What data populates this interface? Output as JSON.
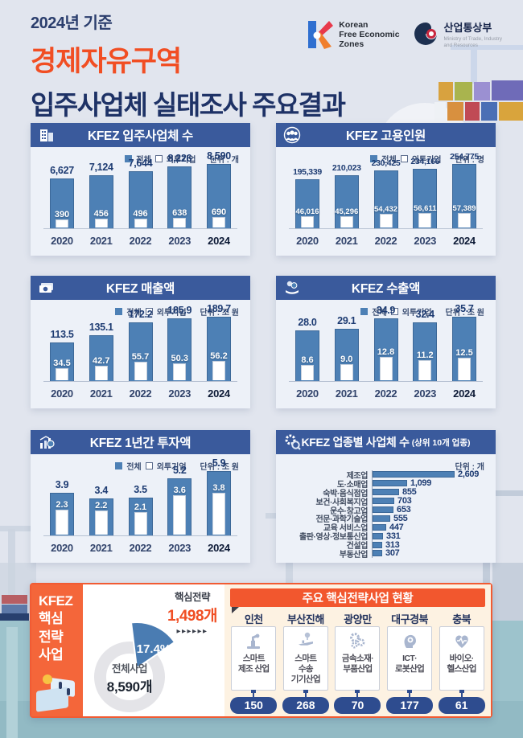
{
  "header": {
    "subtitle": "2024년 기준",
    "title_line1": "경제자유구역",
    "title_line2": "입주사업체 실태조사 주요결과",
    "kfez_logo": {
      "line1": "Korean",
      "line2": "Free Economic",
      "line3": "Zones"
    },
    "motie_logo": {
      "name": "산업통상부",
      "sub1": "Ministry of Trade, Industry",
      "sub2": "and Resources"
    }
  },
  "legend": {
    "total": "전체",
    "foreign": "외투기업"
  },
  "colors": {
    "panel_header": "#3a5a9c",
    "bar_blue": "#4d80b5",
    "value_navy": "#1d3b72",
    "accent_orange": "#f2572e",
    "title_orange": "#f14e23",
    "pill_navy": "#2e4c8f",
    "cream": "#fdf2e2",
    "water": "#9dc3cc"
  },
  "chart_data": [
    {
      "type": "bar",
      "title": "KFEZ 입주사업체 수",
      "unit": "단위 : 개",
      "icon": "building-icon",
      "categories": [
        "2020",
        "2021",
        "2022",
        "2023",
        "2024"
      ],
      "series": [
        {
          "name": "전체",
          "values": [
            6627,
            7124,
            7644,
            8226,
            8590
          ],
          "labels": [
            "6,627",
            "7,124",
            "7,644",
            "8,226",
            "8,590"
          ]
        },
        {
          "name": "외투기업",
          "values": [
            390,
            456,
            496,
            638,
            690
          ],
          "labels": [
            "390",
            "456",
            "496",
            "638",
            "690"
          ]
        }
      ]
    },
    {
      "type": "bar",
      "title": "KFEZ 고용인원",
      "unit": "단위 : 명",
      "icon": "people-icon",
      "categories": [
        "2020",
        "2021",
        "2022",
        "2023",
        "2024"
      ],
      "series": [
        {
          "name": "전체",
          "values": [
            195339,
            210023,
            230425,
            234166,
            254775
          ],
          "labels": [
            "195,339",
            "210,023",
            "230,425",
            "234,166",
            "254,775"
          ]
        },
        {
          "name": "외투기업",
          "values": [
            46016,
            45296,
            54432,
            56611,
            57389
          ],
          "labels": [
            "46,016",
            "45,296",
            "54,432",
            "56,611",
            "57,389"
          ]
        }
      ]
    },
    {
      "type": "bar",
      "title": "KFEZ 매출액",
      "unit": "단위 : 조 원",
      "icon": "money-icon",
      "categories": [
        "2020",
        "2021",
        "2022",
        "2023",
        "2024"
      ],
      "series": [
        {
          "name": "전체",
          "values": [
            113.5,
            135.1,
            172.2,
            185.9,
            189.7
          ],
          "labels": [
            "113.5",
            "135.1",
            "172.2",
            "185.9",
            "189.7"
          ]
        },
        {
          "name": "외투기업",
          "values": [
            34.5,
            42.7,
            55.7,
            50.3,
            56.2
          ],
          "labels": [
            "34.5",
            "42.7",
            "55.7",
            "50.3",
            "56.2"
          ]
        }
      ]
    },
    {
      "type": "bar",
      "title": "KFEZ 수출액",
      "unit": "단위 : 조 원",
      "icon": "export-icon",
      "categories": [
        "2020",
        "2021",
        "2022",
        "2023",
        "2024"
      ],
      "series": [
        {
          "name": "전체",
          "values": [
            28.0,
            29.1,
            34.9,
            32.4,
            35.7
          ],
          "labels": [
            "28.0",
            "29.1",
            "34.9",
            "32.4",
            "35.7"
          ]
        },
        {
          "name": "외투기업",
          "values": [
            8.6,
            9.0,
            12.8,
            11.2,
            12.5
          ],
          "labels": [
            "8.6",
            "9.0",
            "12.8",
            "11.2",
            "12.5"
          ]
        }
      ]
    },
    {
      "type": "bar",
      "title": "KFEZ 1년간 투자액",
      "unit": "단위 : 조 원",
      "icon": "investment-icon",
      "categories": [
        "2020",
        "2021",
        "2022",
        "2023",
        "2024"
      ],
      "series": [
        {
          "name": "전체",
          "values": [
            3.9,
            3.4,
            3.5,
            5.2,
            5.9
          ],
          "labels": [
            "3.9",
            "3.4",
            "3.5",
            "5.2",
            "5.9"
          ]
        },
        {
          "name": "외투기업",
          "values": [
            2.3,
            2.2,
            2.1,
            3.6,
            3.8
          ],
          "labels": [
            "2.3",
            "2.2",
            "2.1",
            "3.6",
            "3.8"
          ]
        }
      ]
    },
    {
      "type": "bar",
      "orientation": "horizontal",
      "title": "KFEZ 업종별 사업체 수",
      "title_suffix": "(상위 10개 업종)",
      "unit": "단위 : 개",
      "icon": "industry-icon",
      "categories": [
        "제조업",
        "도·소매업",
        "숙박·음식점업",
        "보건·사회복지업",
        "운수·창고업",
        "전문·과학기술업",
        "교육 서비스업",
        "출판·영상·정보통신업",
        "건설업",
        "부동산업"
      ],
      "values": [
        2609,
        1099,
        855,
        703,
        653,
        555,
        447,
        331,
        313,
        307
      ],
      "labels": [
        "2,609",
        "1,099",
        "855",
        "703",
        "653",
        "555",
        "447",
        "331",
        "313",
        "307"
      ]
    },
    {
      "type": "pie",
      "title": "KFEZ 핵심 전략 사업",
      "slices": [
        {
          "label": "핵심전략",
          "count_label": "1,498개",
          "pct": 17.4
        },
        {
          "label": "전체사업",
          "count_label": "8,590개",
          "pct": 82.6
        }
      ],
      "pct_label": "17.4%",
      "arrows": "▶▶▶▶▶▶"
    }
  ],
  "bottom": {
    "sidebar_lines": [
      "KFEZ",
      "핵심",
      "전략",
      "사업"
    ],
    "strategy": {
      "header": "주요 핵심전략사업 현황",
      "regions": [
        {
          "name": "인천",
          "icon": "robot-arm-icon",
          "lines": [
            "스마트",
            "제조 산업"
          ],
          "count": "150"
        },
        {
          "name": "부산진해",
          "icon": "transport-icon",
          "lines": [
            "스마트",
            "수송",
            "기기산업"
          ],
          "count": "268"
        },
        {
          "name": "광양만",
          "icon": "gears-icon",
          "lines": [
            "금속소재·",
            "부품산업"
          ],
          "count": "70"
        },
        {
          "name": "대구경북",
          "icon": "ict-robot-icon",
          "lines": [
            "ICT·",
            "로봇산업"
          ],
          "count": "177"
        },
        {
          "name": "충북",
          "icon": "bio-health-icon",
          "lines": [
            "바이오·",
            "헬스산업"
          ],
          "count": "61"
        }
      ]
    }
  }
}
